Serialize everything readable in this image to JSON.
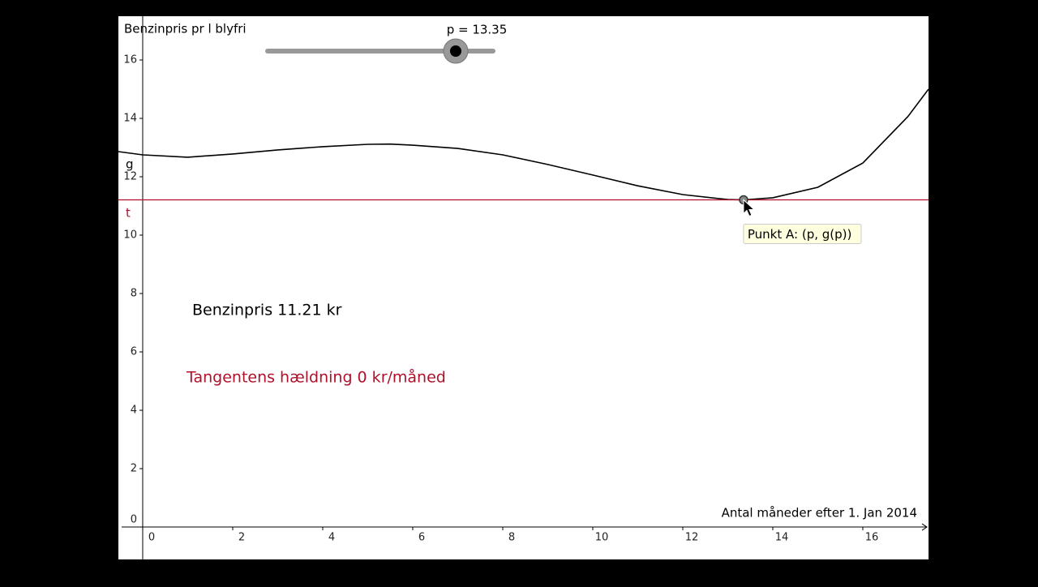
{
  "chart_data": {
    "type": "line",
    "ylabel": "Benzinpris pr l blyfri",
    "xlabel": "Antal måneder efter 1. Jan 2014",
    "xlim": [
      -0.54,
      17.46
    ],
    "ylim": [
      -1.11,
      17.5
    ],
    "xticks": [
      0,
      2,
      4,
      6,
      8,
      10,
      12,
      14,
      16
    ],
    "yticks": [
      0,
      2,
      4,
      6,
      8,
      10,
      12,
      14,
      16
    ],
    "series": [
      {
        "name": "g",
        "color": "#000000",
        "x": [
          -0.54,
          0,
          1,
          2,
          3,
          4,
          5,
          5.5,
          6,
          7,
          8,
          9,
          10,
          11,
          12,
          13,
          13.35,
          14,
          15,
          16,
          17,
          17.46
        ],
        "values": [
          12.86,
          12.75,
          12.67,
          12.78,
          12.92,
          13.03,
          13.11,
          13.12,
          13.08,
          12.97,
          12.75,
          12.42,
          12.06,
          11.69,
          11.39,
          11.22,
          11.21,
          11.28,
          11.64,
          12.47,
          14.06,
          15.0
        ]
      },
      {
        "name": "t",
        "color": "#b0102a",
        "x": [
          -0.54,
          17.46
        ],
        "values": [
          11.21,
          11.21
        ]
      }
    ],
    "point": {
      "x": 13.35,
      "y": 11.21,
      "tooltip": "Punkt A: (p, g(p))"
    },
    "slider": {
      "label": "p = 13.35",
      "value": 13.35,
      "min": 0,
      "max": 16
    },
    "annotations": [
      {
        "text": "Benzinpris 11.21 kr",
        "color": "#000000"
      },
      {
        "text": "Tangentens hældning 0 kr/måned",
        "color": "#b0102a"
      }
    ]
  }
}
